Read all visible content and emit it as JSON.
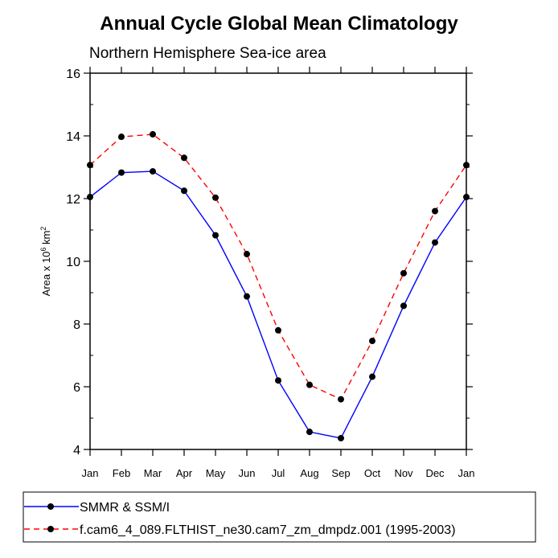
{
  "chart_data": {
    "type": "line",
    "title": "Annual Cycle Global Mean Climatology",
    "subtitle": "Northern Hemisphere Sea-ice area",
    "ylabel": {
      "prefix": "Area x 10",
      "exp1": "6",
      "mid": " km",
      "exp2": "2"
    },
    "ylim": [
      4,
      16
    ],
    "yticks": [
      "4",
      "6",
      "8",
      "10",
      "12",
      "14",
      "16"
    ],
    "categories": [
      "Jan",
      "Feb",
      "Mar",
      "Apr",
      "May",
      "Jun",
      "Jul",
      "Aug",
      "Sep",
      "Oct",
      "Nov",
      "Dec",
      "Jan"
    ],
    "grid": false,
    "legend_position": "bottom",
    "series": [
      {
        "name": "SMMR & SSM/I",
        "color": "#0000ff",
        "dash": "solid",
        "values": [
          12.05,
          12.83,
          12.87,
          12.25,
          10.83,
          8.88,
          6.2,
          4.56,
          4.36,
          6.32,
          8.58,
          10.6,
          12.05
        ]
      },
      {
        "name": "f.cam6_4_089.FLTHIST_ne30.cam7_zm_dmpdz.001 (1995-2003)",
        "color": "#ff0000",
        "dash": "dashed",
        "values": [
          13.07,
          13.97,
          14.05,
          13.3,
          12.03,
          10.23,
          7.8,
          6.06,
          5.6,
          7.46,
          9.62,
          11.6,
          13.07
        ]
      }
    ]
  }
}
